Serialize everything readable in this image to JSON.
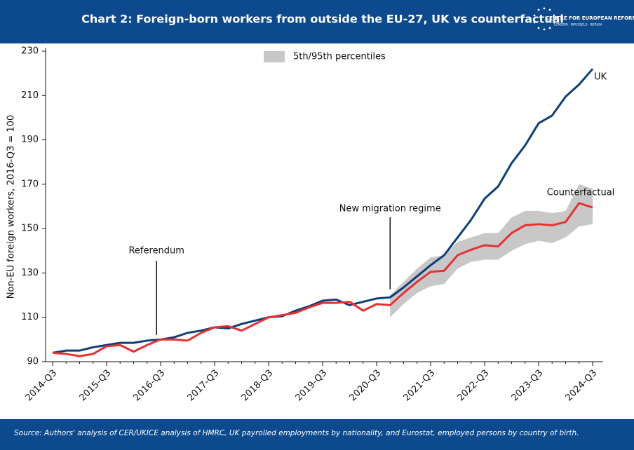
{
  "header": {
    "title": "Chart 2: Foreign-born workers from outside the EU-27, UK vs counterfactual",
    "logo": "CENTRE FOR EUROPEAN REFORM",
    "logo_sub": "LONDON · BRUSSELS · BERLIN"
  },
  "chart_data": {
    "type": "line",
    "ylabel": "Non-EU foreign workers, 2016-Q3 = 100",
    "categories": [
      "2014-Q3",
      null,
      null,
      null,
      "2015-Q3",
      null,
      null,
      null,
      "2016-Q3",
      null,
      null,
      null,
      "2017-Q3",
      null,
      null,
      null,
      "2018-Q3",
      null,
      null,
      null,
      "2019-Q3",
      null,
      null,
      null,
      "2020-Q3",
      null,
      null,
      null,
      "2021-Q3",
      null,
      null,
      null,
      "2022-Q3",
      null,
      null,
      null,
      "2023-Q3",
      null,
      null,
      null,
      "2024-Q3"
    ],
    "series": [
      {
        "name": "UK",
        "color": "#0d3f7a",
        "values": [
          94,
          95,
          95,
          96.5,
          97.5,
          98.5,
          98.5,
          99.5,
          100,
          101,
          103,
          104,
          105.5,
          105,
          107,
          108.5,
          110,
          110.5,
          113,
          115,
          117.5,
          118,
          115.5,
          117,
          118.5,
          119,
          123.5,
          128.5,
          133.5,
          138,
          146,
          154,
          163.5,
          169,
          179.5,
          187.5,
          197.5,
          201,
          209.5,
          215,
          222
        ]
      },
      {
        "name": "Counterfactual",
        "color": "#e8312f",
        "values": [
          94,
          93.5,
          92.5,
          93.5,
          97,
          97.5,
          94.5,
          97.5,
          100,
          100,
          99.5,
          103,
          105.5,
          106,
          104,
          107,
          110,
          111,
          112,
          114.5,
          116.5,
          116.5,
          117,
          113,
          116,
          115.5,
          121,
          126,
          130.5,
          131,
          138,
          140.5,
          142.5,
          142,
          148,
          151.5,
          152,
          151.5,
          153,
          161.5,
          159.5
        ]
      }
    ],
    "band": {
      "name": "5th/95th percentiles",
      "color": "#c8c8c8",
      "upper": [
        null,
        null,
        null,
        null,
        null,
        null,
        null,
        null,
        null,
        null,
        null,
        null,
        null,
        null,
        null,
        null,
        null,
        null,
        null,
        null,
        null,
        null,
        null,
        null,
        null,
        120,
        126,
        132,
        137,
        138,
        144,
        146,
        148,
        148,
        155,
        158,
        158,
        157,
        158,
        170,
        168
      ],
      "lower": [
        null,
        null,
        null,
        null,
        null,
        null,
        null,
        null,
        null,
        null,
        null,
        null,
        null,
        null,
        null,
        null,
        null,
        null,
        null,
        null,
        null,
        null,
        null,
        null,
        null,
        110,
        116,
        121,
        124,
        125,
        132,
        135,
        136,
        136,
        140,
        143,
        144.5,
        143.5,
        146,
        151,
        152
      ]
    },
    "annotations": [
      "Referendum",
      "New migration regime"
    ],
    "ylim": [
      90,
      230
    ],
    "yticks": [
      90,
      110,
      130,
      150,
      170,
      190,
      210,
      230
    ],
    "grid": false
  },
  "footer": {
    "source": "Source: Authors' analysis of CER/UKICE analysis of HMRC, UK payrolled employments by nationality, and Eurostat, employed persons by country of birth."
  }
}
